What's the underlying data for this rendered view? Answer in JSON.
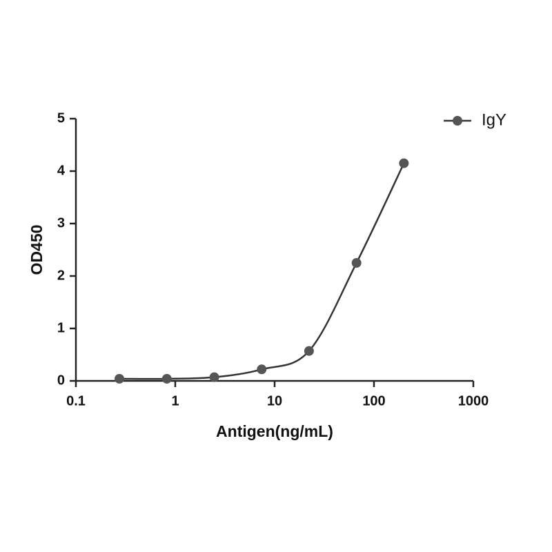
{
  "chart_data": {
    "type": "scatter",
    "x_label": "Antigen(ng/mL)",
    "y_label": "OD450",
    "xscale": "log",
    "xlim": [
      0.1,
      1000
    ],
    "xticks": [
      0.1,
      1,
      10,
      100,
      1000
    ],
    "ylim": [
      0,
      5
    ],
    "yticks": [
      0,
      1,
      2,
      3,
      4,
      5
    ],
    "x": [
      0.274,
      0.823,
      2.47,
      7.41,
      22.2,
      66.7,
      200
    ],
    "series": [
      {
        "name": "IgY",
        "color": "#555555",
        "line_color": "#333333",
        "values": [
          0.04,
          0.04,
          0.07,
          0.22,
          0.57,
          2.25,
          4.15
        ]
      }
    ],
    "legend": "upper right"
  }
}
